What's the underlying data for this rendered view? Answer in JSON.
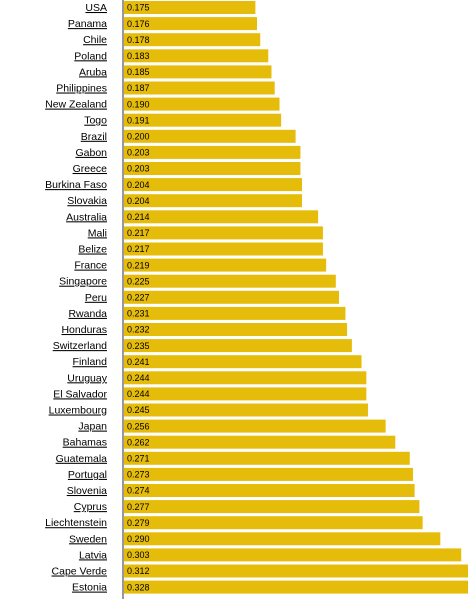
{
  "chart_data": {
    "type": "bar",
    "orientation": "horizontal",
    "bar_color": "#e6bc0a",
    "axis_color": "#333333",
    "categories": [
      "USA",
      "Panama",
      "Chile",
      "Poland",
      "Aruba",
      "Philippines",
      "New Zealand",
      "Togo",
      "Brazil",
      "Gabon",
      "Greece",
      "Burkina Faso",
      "Slovakia",
      "Australia",
      "Mali",
      "Belize",
      "France",
      "Singapore",
      "Peru",
      "Rwanda",
      "Honduras",
      "Switzerland",
      "Finland",
      "Uruguay",
      "El Salvador",
      "Luxembourg",
      "Japan",
      "Bahamas",
      "Guatemala",
      "Portugal",
      "Slovenia",
      "Cyprus",
      "Liechtenstein",
      "Sweden",
      "Latvia",
      "Cape Verde",
      "Estonia"
    ],
    "values": [
      0.175,
      0.176,
      0.178,
      0.183,
      0.185,
      0.187,
      0.19,
      0.191,
      0.2,
      0.203,
      0.203,
      0.204,
      0.204,
      0.214,
      0.217,
      0.217,
      0.219,
      0.225,
      0.227,
      0.231,
      0.232,
      0.235,
      0.241,
      0.244,
      0.244,
      0.245,
      0.256,
      0.262,
      0.271,
      0.273,
      0.274,
      0.277,
      0.279,
      0.29,
      0.303,
      0.312,
      0.328
    ],
    "value_labels": [
      "0.175",
      "0.176",
      "0.178",
      "0.183",
      "0.185",
      "0.187",
      "0.190",
      "0.191",
      "0.200",
      "0.203",
      "0.203",
      "0.204",
      "0.204",
      "0.214",
      "0.217",
      "0.217",
      "0.219",
      "0.225",
      "0.227",
      "0.231",
      "0.232",
      "0.235",
      "0.241",
      "0.244",
      "0.244",
      "0.245",
      "0.256",
      "0.262",
      "0.271",
      "0.273",
      "0.274",
      "0.277",
      "0.279",
      "0.290",
      "0.303",
      "0.312",
      "0.328"
    ]
  }
}
